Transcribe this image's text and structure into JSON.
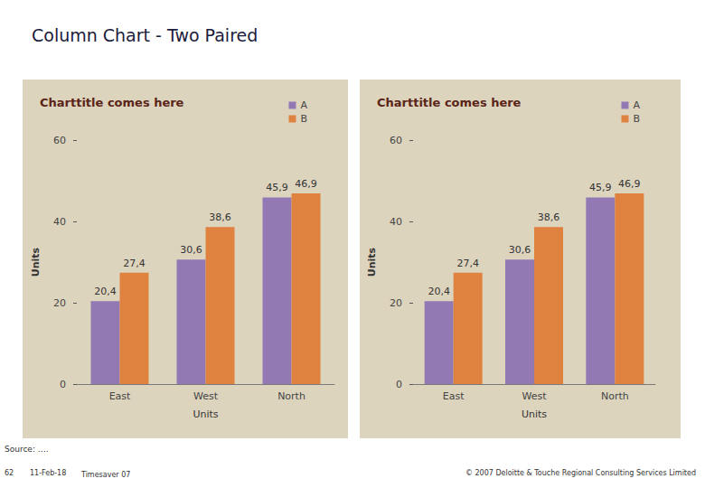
{
  "slide_title": "Column Chart - Two Paired",
  "footer": {
    "source": "Source: ….",
    "page": "62",
    "date": "11-Feb-18",
    "name": "Timesaver 07",
    "copyright": "© 2007 Deloitte & Touche Regional Consulting Services Limited"
  },
  "chart_data": [
    {
      "type": "bar",
      "title": "Charttitle comes here",
      "xlabel": "Units",
      "ylabel": "Units",
      "categories": [
        "East",
        "West",
        "North"
      ],
      "series": [
        {
          "name": "A",
          "color": "#9279b3",
          "values": [
            20.4,
            30.6,
            45.9
          ],
          "value_labels": [
            "20,4",
            "30,6",
            "45,9"
          ]
        },
        {
          "name": "B",
          "color": "#df8240",
          "values": [
            27.4,
            38.6,
            46.9
          ],
          "value_labels": [
            "27,4",
            "38,6",
            "46,9"
          ]
        }
      ],
      "ylim": [
        0,
        60
      ],
      "yticks": [
        0,
        20,
        40,
        60
      ],
      "grid": false,
      "legend": "top-right",
      "data_labels": true
    },
    {
      "type": "bar",
      "title": "Charttitle comes here",
      "xlabel": "Units",
      "ylabel": "Units",
      "categories": [
        "East",
        "West",
        "North"
      ],
      "series": [
        {
          "name": "A",
          "color": "#9279b3",
          "values": [
            20.4,
            30.6,
            45.9
          ],
          "value_labels": [
            "20,4",
            "30,6",
            "45,9"
          ]
        },
        {
          "name": "B",
          "color": "#df8240",
          "values": [
            27.4,
            38.6,
            46.9
          ],
          "value_labels": [
            "27,4",
            "38,6",
            "46,9"
          ]
        }
      ],
      "ylim": [
        0,
        60
      ],
      "yticks": [
        0,
        20,
        40,
        60
      ],
      "grid": false,
      "legend": "top-right",
      "data_labels": true
    }
  ]
}
